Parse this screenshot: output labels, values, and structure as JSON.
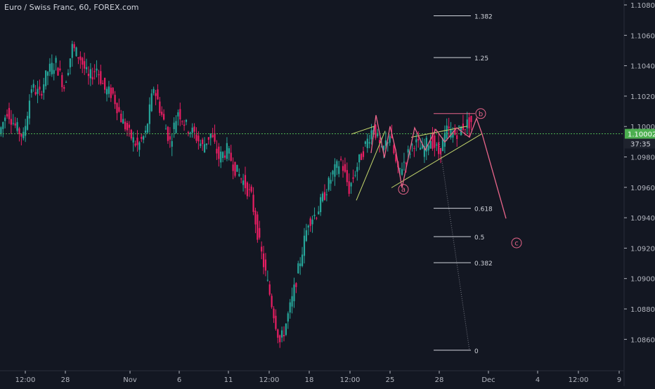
{
  "header": {
    "title": "Euro / Swiss Franc, 60, FOREX.com"
  },
  "price_badge": {
    "value": "1.10002",
    "countdown": "37:35"
  },
  "colors": {
    "background": "#131722",
    "up_candle": "#26a69a",
    "down_candle": "#e91e63",
    "current_price_line": "#4caf50",
    "wave_lines": "#e8658a",
    "trend_lines": "#c5d86d",
    "fib_lines": "#d1d4dc",
    "axis_text": "#b2b5be"
  },
  "chart_data": {
    "type": "candlestick",
    "symbol": "Euro / Swiss Franc",
    "interval": "60",
    "source": "FOREX.com",
    "ylim": [
      1.085,
      1.1085
    ],
    "y_ticks": [
      "1.10800",
      "1.10600",
      "1.10400",
      "1.10200",
      "1.10000",
      "1.09800",
      "1.09600",
      "1.09400",
      "1.09200",
      "1.09000",
      "1.08800",
      "1.08600"
    ],
    "x_ticks": [
      "12:00",
      "28",
      "Nov",
      "6",
      "11",
      "12:00",
      "18",
      "12:00",
      "25",
      "28",
      "Dec",
      "4",
      "12:00",
      "9"
    ],
    "current_price": 1.10002,
    "price_path": [
      [
        0,
        1.1
      ],
      [
        4,
        1.1015
      ],
      [
        8,
        1.1005
      ],
      [
        12,
        1.0998
      ],
      [
        16,
        1.103
      ],
      [
        20,
        1.1025
      ],
      [
        24,
        1.104
      ],
      [
        28,
        1.1045
      ],
      [
        32,
        1.103
      ],
      [
        36,
        1.1055
      ],
      [
        40,
        1.1048
      ],
      [
        44,
        1.1035
      ],
      [
        48,
        1.1042
      ],
      [
        52,
        1.1028
      ],
      [
        56,
        1.1025
      ],
      [
        60,
        1.101
      ],
      [
        64,
        1.1
      ],
      [
        68,
        1.0992
      ],
      [
        72,
        1.1
      ],
      [
        76,
        1.103
      ],
      [
        80,
        1.1012
      ],
      [
        84,
        1.0995
      ],
      [
        88,
        1.1015
      ],
      [
        92,
        1.1005
      ],
      [
        96,
        1.1
      ],
      [
        100,
        1.0992
      ],
      [
        104,
        1.1
      ],
      [
        108,
        1.0985
      ],
      [
        112,
        1.099
      ],
      [
        116,
        1.0978
      ],
      [
        120,
        1.097
      ],
      [
        124,
        1.096
      ],
      [
        128,
        1.093
      ],
      [
        132,
        1.0905
      ],
      [
        136,
        1.088
      ],
      [
        138,
        1.0868
      ],
      [
        140,
        1.0875
      ],
      [
        144,
        1.0895
      ],
      [
        148,
        1.092
      ],
      [
        152,
        1.0945
      ],
      [
        156,
        1.095
      ],
      [
        160,
        1.0962
      ],
      [
        164,
        1.0975
      ],
      [
        168,
        1.0983
      ],
      [
        172,
        1.0965
      ],
      [
        176,
        1.098
      ],
      [
        180,
        1.0993
      ],
      [
        184,
        1.1005
      ],
      [
        188,
        1.0988
      ],
      [
        192,
        1.1
      ],
      [
        196,
        1.0975
      ],
      [
        200,
        1.0985
      ],
      [
        204,
        1.0995
      ],
      [
        208,
        1.099
      ],
      [
        212,
        1.0997
      ],
      [
        216,
        1.0988
      ],
      [
        220,
        1.1002
      ],
      [
        224,
        1.1
      ],
      [
        228,
        1.1005
      ],
      [
        232,
        1.1008
      ]
    ],
    "fib_levels": [
      {
        "label": "1.382",
        "price": 1.1075
      },
      {
        "label": "1.25",
        "price": 1.10485
      },
      {
        "label": "0.618",
        "price": 1.0953
      },
      {
        "label": "0.5",
        "price": 1.0935
      },
      {
        "label": "0.382",
        "price": 1.09185
      },
      {
        "label": "0",
        "price": 1.0863
      }
    ],
    "wave_labels": [
      {
        "label": "a",
        "price": 1.0965
      },
      {
        "label": "b",
        "price": 1.1013
      },
      {
        "label": "c",
        "price": 1.0931
      }
    ],
    "wave_path": [
      [
        1.0987
      ],
      [
        1.1008
      ],
      [
        1.1
      ],
      [
        1.1012
      ],
      [
        1.101
      ],
      [
        1.0995
      ],
      [
        1.09465
      ]
    ]
  }
}
